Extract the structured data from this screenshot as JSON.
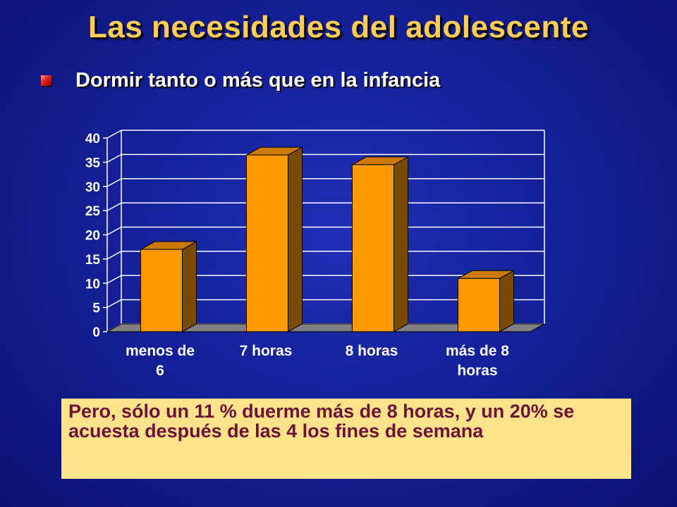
{
  "slide": {
    "title": "Las necesidades del adolescente",
    "bullet": "Dormir tanto o más que en la infancia",
    "note": "Pero, sólo un 11 % duerme más de 8 horas, y un 20% se acuesta después de las 4 los fines de semana"
  },
  "colors": {
    "background": "#15219a",
    "title": "#ffcc55",
    "bar_front": "#ff9900",
    "bar_side": "#7a4a00",
    "floor": "#808080",
    "note_bg": "#ffe38a",
    "note_text": "#6e1238"
  },
  "chart_data": {
    "type": "bar",
    "style": "3d",
    "categories": [
      [
        "menos de",
        "6"
      ],
      [
        "7 horas"
      ],
      [
        "8 horas"
      ],
      [
        "más de 8",
        "horas"
      ]
    ],
    "values": [
      17,
      36.5,
      34.5,
      11
    ],
    "yticks": [
      "0",
      "5",
      "10",
      "15",
      "20",
      "25",
      "30",
      "35",
      "40"
    ],
    "ylim": [
      0,
      40
    ],
    "grid": true,
    "legend": "none"
  }
}
